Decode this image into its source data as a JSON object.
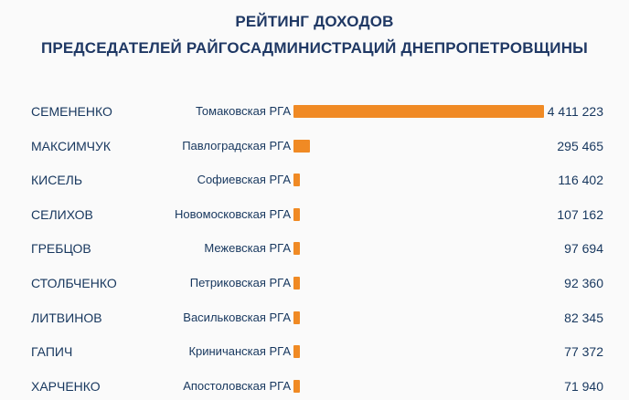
{
  "title_line1": "РЕЙТИНГ ДОХОДОВ",
  "title_line2": "ПРЕДСЕДАТЕЛЕЙ РАЙГОСАДМИНИСТРАЦИЙ ДНЕПРОПЕТРОВЩИНЫ",
  "colors": {
    "bar": "#f08a24",
    "text": "#17375e"
  },
  "chart_data": {
    "type": "bar",
    "orientation": "horizontal",
    "title": "РЕЙТИНГ ДОХОДОВ ПРЕДСЕДАТЕЛЕЙ РАЙГОСАДМИНИСТРАЦИЙ ДНЕПРОПЕТРОВЩИНЫ",
    "rows": [
      {
        "name": "СЕМЕНЕНКО",
        "region": "Томаковская РГА",
        "value": 4411223,
        "label": "4 411 223"
      },
      {
        "name": "МАКСИМЧУК",
        "region": "Павлоградская РГА",
        "value": 295465,
        "label": "295 465"
      },
      {
        "name": "КИСЕЛЬ",
        "region": "Софиевская РГА",
        "value": 116402,
        "label": "116 402"
      },
      {
        "name": "СЕЛИХОВ",
        "region": "Новомосковская РГА",
        "value": 107162,
        "label": "107 162"
      },
      {
        "name": "ГРЕБЦОВ",
        "region": "Межевская РГА",
        "value": 97694,
        "label": "97 694"
      },
      {
        "name": "СТОЛБЧЕНКО",
        "region": "Петриковская РГА",
        "value": 92360,
        "label": "92 360"
      },
      {
        "name": "ЛИТВИНОВ",
        "region": "Васильковская РГА",
        "value": 82345,
        "label": "82 345"
      },
      {
        "name": "ГАПИЧ",
        "region": "Криничанская РГА",
        "value": 77372,
        "label": "77 372"
      },
      {
        "name": "ХАРЧЕНКО",
        "region": "Апостоловская РГА",
        "value": 71940,
        "label": "71 940"
      }
    ]
  }
}
